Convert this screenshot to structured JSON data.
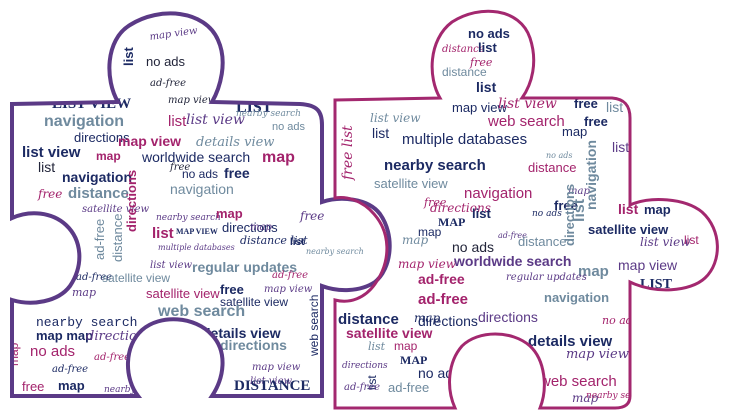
{
  "palette": {
    "left_outline": "#5b3a86",
    "right_outline": "#a3286f",
    "navy": "#1c2a63",
    "magenta": "#a3236c",
    "slate": "#6f8a9e",
    "purple": "#5b3a86",
    "dark": "#22253a"
  },
  "words": {
    "left": [
      {
        "text": "map view",
        "c": "purple",
        "f": "script"
      },
      {
        "text": "list",
        "c": "navy",
        "f": "sans-bold"
      },
      {
        "text": "no ads",
        "c": "dark",
        "f": "sans"
      },
      {
        "text": "ad-free",
        "c": "dark",
        "f": "script"
      },
      {
        "text": "map view",
        "c": "dark",
        "f": "script"
      },
      {
        "text": "LIST VIEW",
        "c": "navy",
        "f": "serif-bold"
      },
      {
        "text": "LIST",
        "c": "navy",
        "f": "serif-bold"
      },
      {
        "text": "nearby search",
        "c": "slate",
        "f": "script"
      },
      {
        "text": "navigation",
        "c": "slate",
        "f": "sans-bold"
      },
      {
        "text": "list",
        "c": "magenta",
        "f": "sans"
      },
      {
        "text": "list view",
        "c": "purple",
        "f": "script"
      },
      {
        "text": "no ads",
        "c": "slate",
        "f": "sans"
      },
      {
        "text": "directions",
        "c": "navy",
        "f": "sans"
      },
      {
        "text": "map view",
        "c": "magenta",
        "f": "sans-bold"
      },
      {
        "text": "details view",
        "c": "slate",
        "f": "script"
      },
      {
        "text": "list view",
        "c": "navy",
        "f": "sans-bold"
      },
      {
        "text": "map",
        "c": "magenta",
        "f": "sans-bold"
      },
      {
        "text": "worldwide search",
        "c": "navy",
        "f": "sans"
      },
      {
        "text": "map",
        "c": "magenta",
        "f": "sans-bold"
      },
      {
        "text": "list",
        "c": "dark",
        "f": "sans"
      },
      {
        "text": "navigation",
        "c": "navy",
        "f": "sans-bold"
      },
      {
        "text": "free",
        "c": "dark",
        "f": "script"
      },
      {
        "text": "no ads",
        "c": "navy",
        "f": "sans"
      },
      {
        "text": "free",
        "c": "navy",
        "f": "sans-bold"
      },
      {
        "text": "free",
        "c": "magenta",
        "f": "script"
      },
      {
        "text": "distance",
        "c": "slate",
        "f": "sans-bold"
      },
      {
        "text": "navigation",
        "c": "slate",
        "f": "sans"
      },
      {
        "text": "satellite view",
        "c": "purple",
        "f": "script"
      },
      {
        "text": "nearby search",
        "c": "purple",
        "f": "script"
      },
      {
        "text": "map",
        "c": "magenta",
        "f": "sans-bold"
      },
      {
        "text": "directions",
        "c": "navy",
        "f": "sans"
      },
      {
        "text": "free",
        "c": "purple",
        "f": "script"
      },
      {
        "text": "list",
        "c": "magenta",
        "f": "sans-bold"
      },
      {
        "text": "MAP VIEW",
        "c": "navy",
        "f": "serif-bold"
      },
      {
        "text": "map",
        "c": "purple",
        "f": "script"
      },
      {
        "text": "list",
        "c": "navy",
        "f": "sans-bold"
      },
      {
        "text": "distance list",
        "c": "navy",
        "f": "script"
      },
      {
        "text": "ad-free",
        "c": "slate",
        "f": "sans"
      },
      {
        "text": "distance",
        "c": "slate",
        "f": "sans"
      },
      {
        "text": "directions",
        "c": "magenta",
        "f": "sans-bold"
      },
      {
        "text": "multiple databases",
        "c": "purple",
        "f": "script"
      },
      {
        "text": "ad-free",
        "c": "navy",
        "f": "script"
      },
      {
        "text": "nearby search",
        "c": "slate",
        "f": "script"
      },
      {
        "text": "list view",
        "c": "purple",
        "f": "script"
      },
      {
        "text": "satellite view",
        "c": "slate",
        "f": "sans"
      },
      {
        "text": "regular updates",
        "c": "slate",
        "f": "sans-bold"
      },
      {
        "text": "satellite view",
        "c": "magenta",
        "f": "sans"
      },
      {
        "text": "map",
        "c": "purple",
        "f": "script"
      },
      {
        "text": "free",
        "c": "navy",
        "f": "sans-bold"
      },
      {
        "text": "satellite view",
        "c": "navy",
        "f": "sans"
      },
      {
        "text": "map view",
        "c": "purple",
        "f": "script"
      },
      {
        "text": "ad-free",
        "c": "magenta",
        "f": "script"
      },
      {
        "text": "nearby search",
        "c": "navy",
        "f": "mono"
      },
      {
        "text": "web search",
        "c": "slate",
        "f": "sans-bold"
      },
      {
        "text": "map map",
        "c": "navy",
        "f": "sans-bold"
      },
      {
        "text": "directions",
        "c": "purple",
        "f": "script"
      },
      {
        "text": "details view",
        "c": "navy",
        "f": "sans-bold"
      },
      {
        "text": "map",
        "c": "magenta",
        "f": "sans"
      },
      {
        "text": "no ads",
        "c": "magenta",
        "f": "sans"
      },
      {
        "text": "ad-free",
        "c": "magenta",
        "f": "script"
      },
      {
        "text": "directions",
        "c": "slate",
        "f": "sans-bold"
      },
      {
        "text": "map view",
        "c": "purple",
        "f": "script"
      },
      {
        "text": "ad-free",
        "c": "navy",
        "f": "script"
      },
      {
        "text": "list view",
        "c": "purple",
        "f": "script"
      },
      {
        "text": "web search",
        "c": "navy",
        "f": "sans"
      },
      {
        "text": "free",
        "c": "magenta",
        "f": "sans"
      },
      {
        "text": "map",
        "c": "navy",
        "f": "sans-bold"
      },
      {
        "text": "DISTANCE",
        "c": "navy",
        "f": "serif-bold"
      },
      {
        "text": "map",
        "c": "purple",
        "f": "script"
      },
      {
        "text": "ad-free",
        "c": "purple",
        "f": "script"
      },
      {
        "text": "nearby search",
        "c": "purple",
        "f": "script"
      }
    ],
    "right": [
      {
        "text": "no ads",
        "c": "navy",
        "f": "sans-bold"
      },
      {
        "text": "distance",
        "c": "magenta",
        "f": "script"
      },
      {
        "text": "list",
        "c": "navy",
        "f": "sans-bold"
      },
      {
        "text": "free",
        "c": "magenta",
        "f": "script"
      },
      {
        "text": "distance",
        "c": "slate",
        "f": "sans"
      },
      {
        "text": "list",
        "c": "navy",
        "f": "sans-bold"
      },
      {
        "text": "map view",
        "c": "navy",
        "f": "sans"
      },
      {
        "text": "list view",
        "c": "magenta",
        "f": "script"
      },
      {
        "text": "free",
        "c": "navy",
        "f": "sans-bold"
      },
      {
        "text": "list",
        "c": "slate",
        "f": "sans"
      },
      {
        "text": "list view",
        "c": "slate",
        "f": "script"
      },
      {
        "text": "web search",
        "c": "magenta",
        "f": "sans"
      },
      {
        "text": "free",
        "c": "navy",
        "f": "sans-bold"
      },
      {
        "text": "list",
        "c": "navy",
        "f": "sans"
      },
      {
        "text": "multiple databases",
        "c": "navy",
        "f": "sans"
      },
      {
        "text": "map",
        "c": "navy",
        "f": "sans"
      },
      {
        "text": "list",
        "c": "magenta",
        "f": "sans-bold"
      },
      {
        "text": "list",
        "c": "purple",
        "f": "sans"
      },
      {
        "text": "no ads",
        "c": "slate",
        "f": "script"
      },
      {
        "text": "nearby search",
        "c": "navy",
        "f": "sans-bold"
      },
      {
        "text": "distance",
        "c": "magenta",
        "f": "sans"
      },
      {
        "text": "free list",
        "c": "magenta",
        "f": "script"
      },
      {
        "text": "satellite view",
        "c": "slate",
        "f": "sans"
      },
      {
        "text": "map",
        "c": "purple",
        "f": "script"
      },
      {
        "text": "navigation",
        "c": "magenta",
        "f": "sans"
      },
      {
        "text": "free",
        "c": "magenta",
        "f": "script"
      },
      {
        "text": "free",
        "c": "navy",
        "f": "sans-bold"
      },
      {
        "text": "navigation",
        "c": "slate",
        "f": "sans-bold"
      },
      {
        "text": "list",
        "c": "magenta",
        "f": "sans-bold"
      },
      {
        "text": "directions",
        "c": "magenta",
        "f": "script"
      },
      {
        "text": "map",
        "c": "navy",
        "f": "sans-bold"
      },
      {
        "text": "list",
        "c": "slate",
        "f": "sans-bold"
      },
      {
        "text": "MAP",
        "c": "navy",
        "f": "serif-bold"
      },
      {
        "text": "list",
        "c": "navy",
        "f": "sans-bold"
      },
      {
        "text": "no ads",
        "c": "navy",
        "f": "script"
      },
      {
        "text": "map",
        "c": "navy",
        "f": "sans"
      },
      {
        "text": "ad-free",
        "c": "purple",
        "f": "script"
      },
      {
        "text": "satellite view",
        "c": "navy",
        "f": "sans-bold"
      },
      {
        "text": "list view",
        "c": "purple",
        "f": "script"
      },
      {
        "text": "directions",
        "c": "slate",
        "f": "sans-bold"
      },
      {
        "text": "map",
        "c": "slate",
        "f": "script"
      },
      {
        "text": "distance",
        "c": "slate",
        "f": "sans"
      },
      {
        "text": "no ads",
        "c": "dark",
        "f": "sans"
      },
      {
        "text": "list",
        "c": "magenta",
        "f": "sans"
      },
      {
        "text": "map view",
        "c": "magenta",
        "f": "script"
      },
      {
        "text": "worldwide search",
        "c": "purple",
        "f": "sans-bold"
      },
      {
        "text": "map",
        "c": "slate",
        "f": "sans-bold"
      },
      {
        "text": "map view",
        "c": "purple",
        "f": "sans"
      },
      {
        "text": "ad-free",
        "c": "magenta",
        "f": "sans-bold"
      },
      {
        "text": "regular updates",
        "c": "purple",
        "f": "script"
      },
      {
        "text": "LIST",
        "c": "navy",
        "f": "serif-bold"
      },
      {
        "text": "ad-free",
        "c": "magenta",
        "f": "sans-bold"
      },
      {
        "text": "map",
        "c": "navy",
        "f": "script"
      },
      {
        "text": "navigation",
        "c": "slate",
        "f": "sans-bold"
      },
      {
        "text": "distance",
        "c": "navy",
        "f": "sans-bold"
      },
      {
        "text": "directions",
        "c": "navy",
        "f": "sans"
      },
      {
        "text": "no ads",
        "c": "magenta",
        "f": "script"
      },
      {
        "text": "satellite view",
        "c": "magenta",
        "f": "sans-bold"
      },
      {
        "text": "directions",
        "c": "purple",
        "f": "sans"
      },
      {
        "text": "details view",
        "c": "navy",
        "f": "sans-bold"
      },
      {
        "text": "list",
        "c": "slate",
        "f": "script"
      },
      {
        "text": "map",
        "c": "magenta",
        "f": "sans"
      },
      {
        "text": "map view",
        "c": "purple",
        "f": "script"
      },
      {
        "text": "MAP",
        "c": "navy",
        "f": "serif-bold"
      },
      {
        "text": "no ads",
        "c": "navy",
        "f": "sans"
      },
      {
        "text": "directions",
        "c": "purple",
        "f": "script"
      },
      {
        "text": "web search",
        "c": "magenta",
        "f": "sans"
      },
      {
        "text": "list",
        "c": "navy",
        "f": "sans"
      },
      {
        "text": "ad-free",
        "c": "slate",
        "f": "sans"
      },
      {
        "text": "map",
        "c": "purple",
        "f": "script"
      },
      {
        "text": "nearby search",
        "c": "magenta",
        "f": "script"
      },
      {
        "text": "ad-free",
        "c": "purple",
        "f": "script"
      }
    ]
  }
}
